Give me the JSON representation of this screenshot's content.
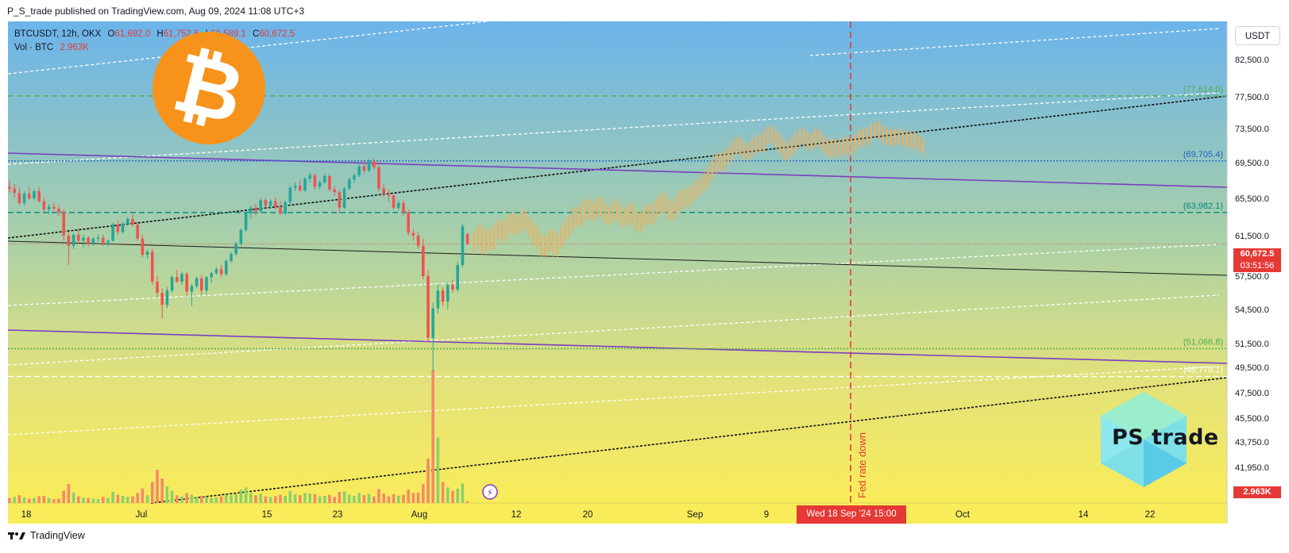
{
  "header": {
    "published": "P_S_trade published on TradingView.com, Aug 09, 2024 11:08 UTC+3"
  },
  "legend": {
    "symbol": "BTCUSDT, 12h, OKX",
    "open_label": "O",
    "open": "61,692.0",
    "high_label": "H",
    "high": "61,752.6",
    "low_label": "L",
    "low": "60,589.1",
    "close_label": "C",
    "close": "60,672.5",
    "volume_label": "Vol · BTC",
    "volume": "2.963K"
  },
  "currency_button": "USDT",
  "price_badge": {
    "price": "60,672.5",
    "countdown": "03:51:56",
    "volume": "2.963K"
  },
  "date_badge": "Wed 18 Sep '24   15:00",
  "event_label": "Fed rate down",
  "brand": {
    "footer_logo": "TradingView",
    "ps_logo": "PS trade",
    "bitcoin_symbol": "₿"
  },
  "colors": {
    "bg_top": "#6bb3ea",
    "bg_bottom": "#f9ec5a",
    "up_candle": "#26a69a",
    "down_candle": "#ef5350",
    "projection": "#e7b266",
    "channel": "#7b3fbf",
    "event_line": "#e53935",
    "level_green": "#4caf50",
    "level_teal": "#00897b",
    "level_blue": "#1e63c6"
  },
  "chart_data": {
    "type": "candlestick",
    "timeframe": "12h",
    "y_axis_ticks": [
      82500,
      77500,
      73500,
      69500,
      65500,
      61500,
      57500,
      54500,
      51500,
      49500,
      47500,
      45500,
      43750,
      41950
    ],
    "y_tick_labels": [
      "82,500.0",
      "77,500.0",
      "73,500.0",
      "69,500.0",
      "65,500.0",
      "61,500.0",
      "57,500.0",
      "54,500.0",
      "51,500.0",
      "49,500.0",
      "47,500.0",
      "45,500.0",
      "43,750.0",
      "41,950.0"
    ],
    "x_tick_labels": [
      "18",
      "Jul",
      "15",
      "23",
      "Aug",
      "12",
      "20",
      "Sep",
      "9",
      "Oct",
      "14",
      "22"
    ],
    "horizontal_levels": [
      {
        "value": 77614.0,
        "label": "(77,614.0)",
        "color": "#4caf50",
        "style": "dashed"
      },
      {
        "value": 69705.4,
        "label": "(69,705.4)",
        "color": "#1e63c6",
        "style": "dotted"
      },
      {
        "value": 63982.1,
        "label": "(63,982.1)",
        "color": "#00897b",
        "style": "dashed"
      },
      {
        "value": 51066.8,
        "label": "(51,066.8)",
        "color": "#4caf50",
        "style": "dotted"
      },
      {
        "value": 48779.1,
        "label": "(48,779.1)",
        "color": "#ffffff",
        "style": "dashed"
      }
    ],
    "last_price": 60672.5,
    "event": {
      "date": "Wed 18 Sep '24 15:00",
      "label": "Fed rate down"
    },
    "candles": [
      {
        "o": 66800,
        "h": 67500,
        "l": 66100,
        "c": 66600
      },
      {
        "o": 66600,
        "h": 67100,
        "l": 65600,
        "c": 66100
      },
      {
        "o": 66100,
        "h": 66700,
        "l": 64800,
        "c": 65000
      },
      {
        "o": 65000,
        "h": 66300,
        "l": 64700,
        "c": 66000
      },
      {
        "o": 66000,
        "h": 66800,
        "l": 65300,
        "c": 65500
      },
      {
        "o": 65500,
        "h": 66500,
        "l": 65300,
        "c": 66300
      },
      {
        "o": 66300,
        "h": 66800,
        "l": 65000,
        "c": 65200
      },
      {
        "o": 65200,
        "h": 65600,
        "l": 64000,
        "c": 64300
      },
      {
        "o": 64300,
        "h": 64900,
        "l": 63800,
        "c": 64600
      },
      {
        "o": 64600,
        "h": 65000,
        "l": 64100,
        "c": 64400
      },
      {
        "o": 64400,
        "h": 64800,
        "l": 63600,
        "c": 64000
      },
      {
        "o": 64000,
        "h": 64300,
        "l": 61000,
        "c": 61500
      },
      {
        "o": 61500,
        "h": 61900,
        "l": 58600,
        "c": 60500
      },
      {
        "o": 60500,
        "h": 61800,
        "l": 60200,
        "c": 61600
      },
      {
        "o": 61600,
        "h": 62100,
        "l": 60700,
        "c": 61000
      },
      {
        "o": 61000,
        "h": 61600,
        "l": 60300,
        "c": 61300
      },
      {
        "o": 61300,
        "h": 61500,
        "l": 60400,
        "c": 60700
      },
      {
        "o": 60700,
        "h": 61400,
        "l": 60500,
        "c": 61200
      },
      {
        "o": 61200,
        "h": 61600,
        "l": 60900,
        "c": 61300
      },
      {
        "o": 61300,
        "h": 61600,
        "l": 60500,
        "c": 60800
      },
      {
        "o": 60800,
        "h": 61100,
        "l": 60400,
        "c": 61000
      },
      {
        "o": 61000,
        "h": 62900,
        "l": 60900,
        "c": 62700
      },
      {
        "o": 62700,
        "h": 63100,
        "l": 61600,
        "c": 61900
      },
      {
        "o": 61900,
        "h": 63000,
        "l": 61700,
        "c": 62800
      },
      {
        "o": 62800,
        "h": 63500,
        "l": 62600,
        "c": 63300
      },
      {
        "o": 63300,
        "h": 63800,
        "l": 62500,
        "c": 62700
      },
      {
        "o": 62700,
        "h": 63000,
        "l": 61000,
        "c": 61200
      },
      {
        "o": 61200,
        "h": 61600,
        "l": 59400,
        "c": 59600
      },
      {
        "o": 59600,
        "h": 60100,
        "l": 59200,
        "c": 59900
      },
      {
        "o": 59900,
        "h": 60200,
        "l": 56700,
        "c": 57000
      },
      {
        "o": 57000,
        "h": 57500,
        "l": 55600,
        "c": 56000
      },
      {
        "o": 56000,
        "h": 56400,
        "l": 53700,
        "c": 54900
      },
      {
        "o": 54900,
        "h": 56500,
        "l": 54600,
        "c": 56200
      },
      {
        "o": 56200,
        "h": 57600,
        "l": 56000,
        "c": 57400
      },
      {
        "o": 57400,
        "h": 58100,
        "l": 56900,
        "c": 57000
      },
      {
        "o": 57000,
        "h": 57900,
        "l": 56700,
        "c": 57700
      },
      {
        "o": 57700,
        "h": 57900,
        "l": 55600,
        "c": 56100
      },
      {
        "o": 56100,
        "h": 56800,
        "l": 54800,
        "c": 56600
      },
      {
        "o": 56600,
        "h": 57500,
        "l": 56400,
        "c": 57300
      },
      {
        "o": 57300,
        "h": 57600,
        "l": 55800,
        "c": 56200
      },
      {
        "o": 56200,
        "h": 57500,
        "l": 55900,
        "c": 57400
      },
      {
        "o": 57400,
        "h": 57900,
        "l": 56900,
        "c": 57800
      },
      {
        "o": 57800,
        "h": 58400,
        "l": 57600,
        "c": 58200
      },
      {
        "o": 58200,
        "h": 58600,
        "l": 57400,
        "c": 57700
      },
      {
        "o": 57700,
        "h": 59200,
        "l": 57500,
        "c": 59000
      },
      {
        "o": 59000,
        "h": 59900,
        "l": 58800,
        "c": 59700
      },
      {
        "o": 59700,
        "h": 60900,
        "l": 59500,
        "c": 60700
      },
      {
        "o": 60700,
        "h": 62300,
        "l": 60500,
        "c": 62100
      },
      {
        "o": 62100,
        "h": 64100,
        "l": 61900,
        "c": 63900
      },
      {
        "o": 63900,
        "h": 64700,
        "l": 63300,
        "c": 64500
      },
      {
        "o": 64500,
        "h": 64900,
        "l": 63700,
        "c": 64100
      },
      {
        "o": 64100,
        "h": 65500,
        "l": 63900,
        "c": 65300
      },
      {
        "o": 65300,
        "h": 65600,
        "l": 64500,
        "c": 64700
      },
      {
        "o": 64700,
        "h": 65400,
        "l": 64400,
        "c": 65200
      },
      {
        "o": 65200,
        "h": 65600,
        "l": 64300,
        "c": 64600
      },
      {
        "o": 64600,
        "h": 65200,
        "l": 63700,
        "c": 63900
      },
      {
        "o": 63900,
        "h": 65300,
        "l": 63700,
        "c": 65100
      },
      {
        "o": 65100,
        "h": 66900,
        "l": 64900,
        "c": 66700
      },
      {
        "o": 66700,
        "h": 67300,
        "l": 66300,
        "c": 66900
      },
      {
        "o": 66900,
        "h": 67600,
        "l": 66200,
        "c": 66400
      },
      {
        "o": 66400,
        "h": 67900,
        "l": 66200,
        "c": 67700
      },
      {
        "o": 67700,
        "h": 68400,
        "l": 67300,
        "c": 68100
      },
      {
        "o": 68100,
        "h": 68300,
        "l": 66500,
        "c": 66800
      },
      {
        "o": 66800,
        "h": 67500,
        "l": 66500,
        "c": 67300
      },
      {
        "o": 67300,
        "h": 68300,
        "l": 67100,
        "c": 68000
      },
      {
        "o": 68000,
        "h": 68200,
        "l": 66300,
        "c": 66500
      },
      {
        "o": 66500,
        "h": 66900,
        "l": 65800,
        "c": 66200
      },
      {
        "o": 66200,
        "h": 66500,
        "l": 63900,
        "c": 64500
      },
      {
        "o": 64500,
        "h": 66800,
        "l": 64300,
        "c": 66600
      },
      {
        "o": 66600,
        "h": 67800,
        "l": 66400,
        "c": 67600
      },
      {
        "o": 67600,
        "h": 68300,
        "l": 67200,
        "c": 68100
      },
      {
        "o": 68100,
        "h": 69300,
        "l": 67900,
        "c": 69100
      },
      {
        "o": 69100,
        "h": 69700,
        "l": 68300,
        "c": 68600
      },
      {
        "o": 68600,
        "h": 69900,
        "l": 68400,
        "c": 69700
      },
      {
        "o": 69700,
        "h": 70000,
        "l": 68700,
        "c": 69000
      },
      {
        "o": 69000,
        "h": 69600,
        "l": 66300,
        "c": 66600
      },
      {
        "o": 66600,
        "h": 67100,
        "l": 65600,
        "c": 66000
      },
      {
        "o": 66000,
        "h": 66500,
        "l": 65100,
        "c": 65800
      },
      {
        "o": 65800,
        "h": 66000,
        "l": 64300,
        "c": 64500
      },
      {
        "o": 64500,
        "h": 65300,
        "l": 64200,
        "c": 65000
      },
      {
        "o": 65000,
        "h": 65300,
        "l": 63600,
        "c": 64000
      },
      {
        "o": 64000,
        "h": 64300,
        "l": 61500,
        "c": 61800
      },
      {
        "o": 61800,
        "h": 62200,
        "l": 61000,
        "c": 61500
      },
      {
        "o": 61500,
        "h": 61900,
        "l": 60200,
        "c": 60500
      },
      {
        "o": 60500,
        "h": 61200,
        "l": 57200,
        "c": 57500
      },
      {
        "o": 57500,
        "h": 58100,
        "l": 51600,
        "c": 52000
      },
      {
        "o": 52000,
        "h": 55100,
        "l": 49200,
        "c": 54600
      },
      {
        "o": 54600,
        "h": 56800,
        "l": 54100,
        "c": 56200
      },
      {
        "o": 56200,
        "h": 56500,
        "l": 54800,
        "c": 55200
      },
      {
        "o": 55200,
        "h": 57000,
        "l": 54500,
        "c": 56700
      },
      {
        "o": 56700,
        "h": 57200,
        "l": 56000,
        "c": 56300
      },
      {
        "o": 56300,
        "h": 58900,
        "l": 56100,
        "c": 58600
      },
      {
        "o": 58600,
        "h": 62800,
        "l": 58400,
        "c": 62500
      },
      {
        "o": 61692,
        "h": 61752.6,
        "l": 60589.1,
        "c": 60672.5
      }
    ],
    "volume": [
      {
        "v": 9,
        "up": false
      },
      {
        "v": 11,
        "up": true
      },
      {
        "v": 14,
        "up": false
      },
      {
        "v": 10,
        "up": true
      },
      {
        "v": 8,
        "up": false
      },
      {
        "v": 9,
        "up": true
      },
      {
        "v": 12,
        "up": false
      },
      {
        "v": 13,
        "up": false
      },
      {
        "v": 9,
        "up": true
      },
      {
        "v": 7,
        "up": false
      },
      {
        "v": 8,
        "up": false
      },
      {
        "v": 22,
        "up": false
      },
      {
        "v": 34,
        "up": false
      },
      {
        "v": 19,
        "up": true
      },
      {
        "v": 12,
        "up": false
      },
      {
        "v": 10,
        "up": true
      },
      {
        "v": 9,
        "up": false
      },
      {
        "v": 8,
        "up": true
      },
      {
        "v": 7,
        "up": true
      },
      {
        "v": 11,
        "up": false
      },
      {
        "v": 9,
        "up": true
      },
      {
        "v": 20,
        "up": true
      },
      {
        "v": 15,
        "up": false
      },
      {
        "v": 13,
        "up": true
      },
      {
        "v": 11,
        "up": true
      },
      {
        "v": 12,
        "up": false
      },
      {
        "v": 18,
        "up": false
      },
      {
        "v": 26,
        "up": false
      },
      {
        "v": 14,
        "up": true
      },
      {
        "v": 38,
        "up": false
      },
      {
        "v": 60,
        "up": false
      },
      {
        "v": 44,
        "up": false
      },
      {
        "v": 30,
        "up": true
      },
      {
        "v": 22,
        "up": true
      },
      {
        "v": 14,
        "up": false
      },
      {
        "v": 12,
        "up": true
      },
      {
        "v": 18,
        "up": false
      },
      {
        "v": 15,
        "up": true
      },
      {
        "v": 10,
        "up": true
      },
      {
        "v": 13,
        "up": false
      },
      {
        "v": 11,
        "up": true
      },
      {
        "v": 9,
        "up": true
      },
      {
        "v": 10,
        "up": true
      },
      {
        "v": 12,
        "up": false
      },
      {
        "v": 15,
        "up": true
      },
      {
        "v": 14,
        "up": true
      },
      {
        "v": 16,
        "up": true
      },
      {
        "v": 24,
        "up": true
      },
      {
        "v": 28,
        "up": true
      },
      {
        "v": 18,
        "up": true
      },
      {
        "v": 14,
        "up": false
      },
      {
        "v": 17,
        "up": true
      },
      {
        "v": 12,
        "up": false
      },
      {
        "v": 11,
        "up": true
      },
      {
        "v": 12,
        "up": false
      },
      {
        "v": 15,
        "up": false
      },
      {
        "v": 13,
        "up": true
      },
      {
        "v": 22,
        "up": true
      },
      {
        "v": 16,
        "up": true
      },
      {
        "v": 14,
        "up": false
      },
      {
        "v": 18,
        "up": true
      },
      {
        "v": 17,
        "up": true
      },
      {
        "v": 16,
        "up": false
      },
      {
        "v": 12,
        "up": true
      },
      {
        "v": 13,
        "up": true
      },
      {
        "v": 15,
        "up": false
      },
      {
        "v": 11,
        "up": false
      },
      {
        "v": 20,
        "up": false
      },
      {
        "v": 21,
        "up": true
      },
      {
        "v": 15,
        "up": true
      },
      {
        "v": 13,
        "up": true
      },
      {
        "v": 18,
        "up": true
      },
      {
        "v": 14,
        "up": false
      },
      {
        "v": 16,
        "up": true
      },
      {
        "v": 12,
        "up": false
      },
      {
        "v": 25,
        "up": false
      },
      {
        "v": 17,
        "up": false
      },
      {
        "v": 12,
        "up": false
      },
      {
        "v": 16,
        "up": false
      },
      {
        "v": 13,
        "up": true
      },
      {
        "v": 15,
        "up": false
      },
      {
        "v": 24,
        "up": false
      },
      {
        "v": 18,
        "up": false
      },
      {
        "v": 19,
        "up": false
      },
      {
        "v": 34,
        "up": false
      },
      {
        "v": 80,
        "up": false
      },
      {
        "v": 240,
        "up": false
      },
      {
        "v": 118,
        "up": true
      },
      {
        "v": 38,
        "up": false
      },
      {
        "v": 28,
        "up": true
      },
      {
        "v": 22,
        "up": false
      },
      {
        "v": 26,
        "up": true
      },
      {
        "v": 35,
        "up": true
      },
      {
        "v": 3,
        "up": false
      }
    ],
    "projection_closes": [
      61200,
      61800,
      60600,
      61400,
      60900,
      61900,
      62300,
      61700,
      62500,
      63100,
      62400,
      62900,
      63400,
      62700,
      62100,
      61500,
      60900,
      60200,
      60700,
      61300,
      60400,
      61000,
      61700,
      62200,
      62900,
      63700,
      63300,
      64000,
      64600,
      63900,
      64300,
      64800,
      64200,
      63500,
      63800,
      64500,
      63900,
      63300,
      63700,
      64200,
      63400,
      62700,
      63300,
      64000,
      63500,
      64100,
      64700,
      65200,
      64600,
      64000,
      64300,
      65000,
      65700,
      65300,
      65900,
      66200,
      66700,
      67100,
      67600,
      68300,
      69100,
      69800,
      69400,
      70000,
      70600,
      71200,
      71700,
      71200,
      70600,
      70900,
      71500,
      72000,
      71500,
      72400,
      73000,
      72600,
      72000,
      71400,
      70600,
      71100,
      71600,
      72200,
      72700,
      72300,
      71800,
      72200,
      72700,
      72000,
      71400,
      71000,
      71500,
      70900,
      71300,
      71700,
      71200,
      71600,
      72100,
      72600,
      72200,
      72800,
      73300,
      73600,
      73100,
      72600,
      72300,
      72700,
      72300,
      72600,
      72300,
      72000,
      72300,
      71900,
      71600,
      71300
    ]
  }
}
